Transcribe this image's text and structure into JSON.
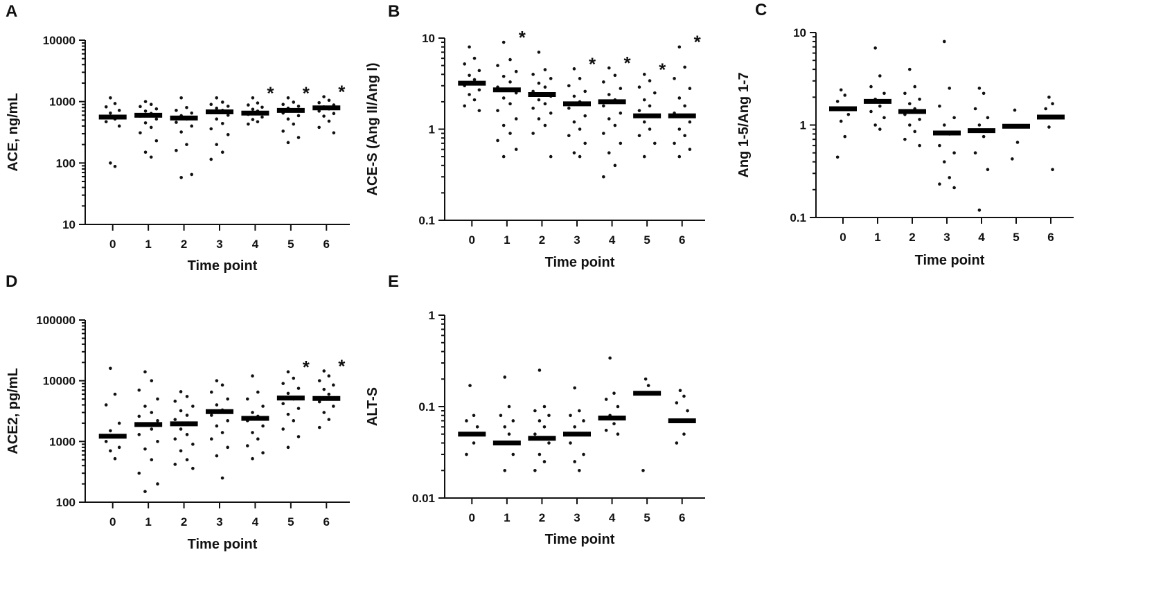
{
  "chart_data": [
    {
      "panel": "A",
      "type": "scatter",
      "scale": "log",
      "xlabel": "Time point",
      "ylabel": "ACE, ng/mL",
      "ylim": [
        10,
        10000
      ],
      "yticks": [
        "10",
        "100",
        "1000",
        "10000"
      ],
      "categories": [
        "0",
        "1",
        "2",
        "3",
        "4",
        "5",
        "6"
      ],
      "medians": [
        560,
        600,
        540,
        680,
        650,
        720,
        790
      ],
      "significant": [
        "4",
        "5",
        "6"
      ],
      "points": [
        [
          1150,
          930,
          820,
          720,
          650,
          520,
          470,
          400,
          100,
          88
        ],
        [
          1000,
          900,
          830,
          760,
          700,
          640,
          580,
          520,
          450,
          380,
          310,
          230,
          150,
          125
        ],
        [
          1150,
          800,
          720,
          650,
          590,
          520,
          460,
          400,
          320,
          200,
          160,
          65,
          58
        ],
        [
          1150,
          980,
          900,
          840,
          780,
          720,
          660,
          600,
          520,
          440,
          360,
          290,
          200,
          150,
          115
        ],
        [
          1150,
          950,
          880,
          810,
          750,
          700,
          620,
          560,
          510,
          470,
          430
        ],
        [
          1150,
          980,
          900,
          840,
          780,
          710,
          650,
          590,
          520,
          430,
          330,
          260,
          215
        ],
        [
          1200,
          1050,
          960,
          880,
          820,
          760,
          700,
          640,
          580,
          480,
          380,
          310
        ]
      ]
    },
    {
      "panel": "B",
      "type": "scatter",
      "scale": "log",
      "xlabel": "Time point",
      "ylabel": "ACE-S (Ang II/Ang I)",
      "ylim": [
        0.1,
        10
      ],
      "yticks": [
        "0.1",
        "1",
        "10"
      ],
      "categories": [
        "0",
        "1",
        "2",
        "3",
        "4",
        "5",
        "6"
      ],
      "medians": [
        3.2,
        2.7,
        2.4,
        1.9,
        2.0,
        1.4,
        1.4
      ],
      "significant": [
        "1",
        "3",
        "4",
        "5",
        "6"
      ],
      "points": [
        [
          8.0,
          6.0,
          5.2,
          4.4,
          3.9,
          3.5,
          3.0,
          2.7,
          2.4,
          2.1,
          1.8,
          1.6
        ],
        [
          9.0,
          5.8,
          5.0,
          4.3,
          3.8,
          3.3,
          2.9,
          2.5,
          2.2,
          1.9,
          1.6,
          1.3,
          1.1,
          0.9,
          0.75,
          0.6,
          0.5
        ],
        [
          7.0,
          4.5,
          4.0,
          3.6,
          3.2,
          2.9,
          2.6,
          2.3,
          2.1,
          1.9,
          1.7,
          1.5,
          1.3,
          1.1,
          0.9,
          0.5
        ],
        [
          4.6,
          3.6,
          3.0,
          2.6,
          2.3,
          2.0,
          1.7,
          1.4,
          1.2,
          1.0,
          0.85,
          0.7,
          0.55,
          0.5
        ],
        [
          4.7,
          3.9,
          3.3,
          2.8,
          2.4,
          2.1,
          1.8,
          1.5,
          1.3,
          1.1,
          0.9,
          0.7,
          0.55,
          0.4,
          0.3
        ],
        [
          4.0,
          3.4,
          2.9,
          2.5,
          2.1,
          1.8,
          1.6,
          1.4,
          1.2,
          1.0,
          0.85,
          0.7,
          0.5
        ],
        [
          8.0,
          4.8,
          3.6,
          2.8,
          2.2,
          1.8,
          1.5,
          1.2,
          1.0,
          0.85,
          0.7,
          0.6,
          0.5
        ]
      ]
    },
    {
      "panel": "C",
      "type": "scatter",
      "scale": "log",
      "xlabel": "Time point",
      "ylabel": "Ang 1-5/Ang 1-7",
      "ylim": [
        0.1,
        10
      ],
      "yticks": [
        "0.1",
        "1",
        "10"
      ],
      "categories": [
        "0",
        "1",
        "2",
        "3",
        "4",
        "5",
        "6"
      ],
      "medians": [
        1.5,
        1.8,
        1.4,
        0.82,
        0.87,
        0.97,
        1.22
      ],
      "significant": [],
      "points": [
        [
          2.4,
          2.1,
          1.8,
          1.3,
          1.1,
          0.75,
          0.45
        ],
        [
          6.8,
          3.4,
          2.6,
          2.2,
          1.9,
          1.6,
          1.4,
          1.2,
          1.0,
          0.9
        ],
        [
          4.0,
          2.6,
          2.2,
          1.9,
          1.7,
          1.5,
          1.3,
          1.15,
          1.0,
          0.85,
          0.7,
          0.6
        ],
        [
          8.0,
          2.5,
          1.6,
          1.2,
          1.0,
          0.8,
          0.6,
          0.5,
          0.4,
          0.27,
          0.23,
          0.21
        ],
        [
          2.5,
          2.2,
          1.5,
          1.2,
          1.0,
          0.75,
          0.5,
          0.33,
          0.12
        ],
        [
          1.45,
          0.65,
          0.43
        ],
        [
          2.0,
          1.7,
          1.5,
          1.2,
          0.95,
          0.33
        ]
      ]
    },
    {
      "panel": "D",
      "type": "scatter",
      "scale": "log",
      "xlabel": "Time point",
      "ylabel": "ACE2, pg/mL",
      "ylim": [
        100,
        100000
      ],
      "yticks": [
        "100",
        "1000",
        "10000",
        "100000"
      ],
      "categories": [
        "0",
        "1",
        "2",
        "3",
        "4",
        "5",
        "6"
      ],
      "medians": [
        1220,
        1900,
        1950,
        3100,
        2400,
        5200,
        5100
      ],
      "significant": [
        "5",
        "6"
      ],
      "points": [
        [
          16000,
          6000,
          4000,
          2000,
          1500,
          1200,
          1000,
          800,
          700,
          520
        ],
        [
          14000,
          10000,
          7000,
          5000,
          3800,
          3000,
          2600,
          2200,
          1900,
          1600,
          1300,
          1000,
          750,
          500,
          300,
          200,
          150
        ],
        [
          6600,
          5500,
          4600,
          3800,
          3200,
          2700,
          2300,
          1900,
          1600,
          1300,
          1100,
          900,
          700,
          500,
          420,
          360
        ],
        [
          10000,
          8500,
          6500,
          5000,
          4000,
          3300,
          2700,
          2200,
          1800,
          1400,
          1100,
          800,
          580,
          250
        ],
        [
          12000,
          6500,
          5000,
          3800,
          3000,
          2600,
          2200,
          1800,
          1400,
          1100,
          850,
          650,
          520
        ],
        [
          14000,
          11000,
          9000,
          7500,
          6200,
          5000,
          4200,
          3500,
          2800,
          2200,
          1600,
          1200,
          800
        ],
        [
          14500,
          12000,
          10000,
          8500,
          7200,
          6000,
          4500,
          3800,
          3000,
          2300,
          1700
        ]
      ]
    },
    {
      "panel": "E",
      "type": "scatter",
      "scale": "log",
      "xlabel": "Time point",
      "ylabel": "ALT-S",
      "ylim": [
        0.01,
        1
      ],
      "yticks": [
        "0.01",
        "0.1",
        "1"
      ],
      "categories": [
        "0",
        "1",
        "2",
        "3",
        "4",
        "5",
        "6"
      ],
      "medians": [
        0.05,
        0.04,
        0.045,
        0.05,
        0.075,
        0.14,
        0.07
      ],
      "significant": [],
      "points": [
        [
          0.17,
          0.08,
          0.07,
          0.06,
          0.05,
          0.04,
          0.03
        ],
        [
          0.21,
          0.1,
          0.08,
          0.07,
          0.06,
          0.05,
          0.04,
          0.03,
          0.02
        ],
        [
          0.25,
          0.1,
          0.09,
          0.08,
          0.07,
          0.06,
          0.05,
          0.04,
          0.03,
          0.025,
          0.02
        ],
        [
          0.16,
          0.09,
          0.08,
          0.07,
          0.06,
          0.05,
          0.04,
          0.03,
          0.025,
          0.02
        ],
        [
          0.34,
          0.14,
          0.12,
          0.1,
          0.08,
          0.065,
          0.055,
          0.05
        ],
        [
          0.2,
          0.17,
          0.02
        ],
        [
          0.15,
          0.13,
          0.11,
          0.09,
          0.07,
          0.05,
          0.04
        ]
      ]
    }
  ]
}
